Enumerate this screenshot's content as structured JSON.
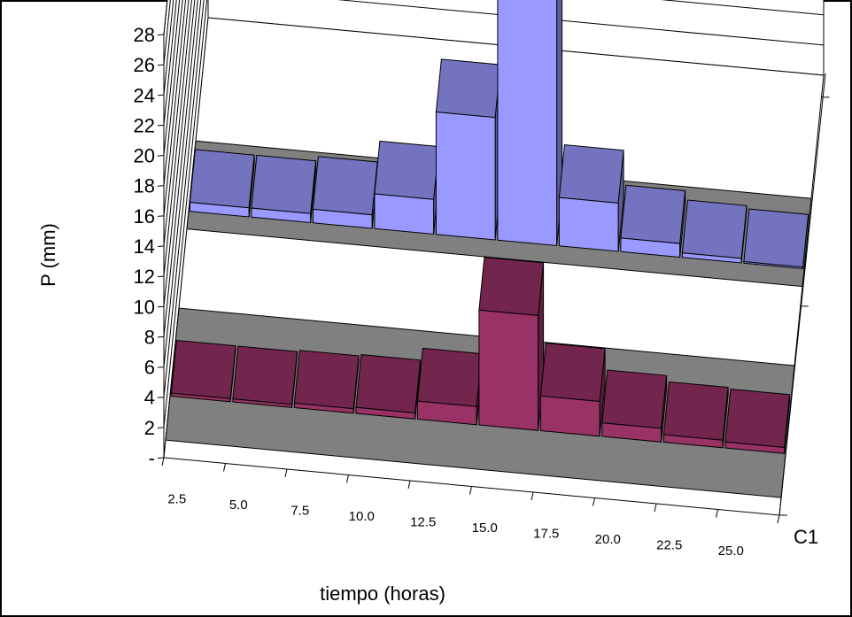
{
  "chart_data": {
    "type": "bar",
    "style": "3d-clustered-depth",
    "xlabel": "tiempo (horas)",
    "ylabel": "P (mm)",
    "categories": [
      "2.5",
      "5.0",
      "7.5",
      "10.0",
      "12.5",
      "15.0",
      "17.5",
      "20.0",
      "22.5",
      "25.0"
    ],
    "yticks": [
      "-",
      "2",
      "4",
      "6",
      "8",
      "10",
      "12",
      "14",
      "16",
      "18",
      "20",
      "22",
      "24",
      "26",
      "28"
    ],
    "ylim": [
      0,
      28
    ],
    "grid": true,
    "depth_label": "C1",
    "series": [
      {
        "name": "C1",
        "values": [
          0.6,
          0.6,
          0.9,
          2.3,
          8.1,
          18.4,
          3.2,
          0.9,
          0.3,
          0.1
        ],
        "color": "#9999ff"
      },
      {
        "values": [
          0.2,
          0.2,
          0.3,
          0.4,
          1.2,
          7.6,
          2.3,
          0.9,
          0.5,
          0.4
        ],
        "color": "#993366"
      }
    ],
    "colors": {
      "wall": "#ffffff",
      "floor": "#808080",
      "border": "#000000"
    }
  }
}
